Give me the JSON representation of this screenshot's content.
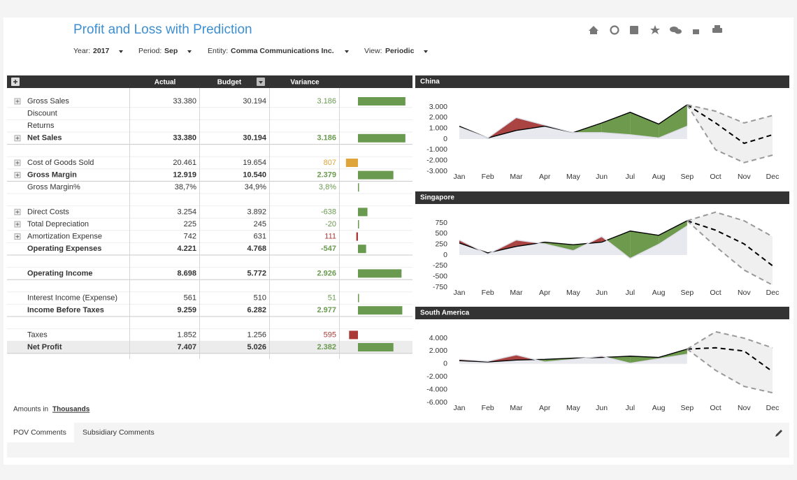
{
  "header": {
    "title": "Profit and Loss with Prediction"
  },
  "filters": [
    {
      "label": "Year:",
      "value": "2017"
    },
    {
      "label": "Period:",
      "value": "Sep"
    },
    {
      "label": "Entity:",
      "value": "Comma Communications Inc."
    },
    {
      "label": "View:",
      "value": "Periodic"
    }
  ],
  "table": {
    "columns": [
      "Actual",
      "Budget",
      "Variance"
    ],
    "bar_scale_per_unit": 0.0213,
    "rows": [
      {
        "label": "Gross Sales",
        "expand": true,
        "actual": "33.380",
        "budget": "30.194",
        "variance": 3186,
        "variance_label": "3.186",
        "color": "#6a9a4f"
      },
      {
        "label": "Discount"
      },
      {
        "label": "Returns"
      },
      {
        "label": "Net Sales",
        "expand": true,
        "bold": true,
        "actual": "33.380",
        "budget": "30.194",
        "variance": 3186,
        "variance_label": "3.186",
        "color": "#6a9a4f"
      },
      null,
      {
        "label": "Cost of Goods Sold",
        "expand": true,
        "inverse": true,
        "actual": "20.461",
        "budget": "19.654",
        "variance": 807,
        "variance_label": "807",
        "color": "#e0a53a"
      },
      {
        "label": "Gross Margin",
        "expand": true,
        "bold": true,
        "actual": "12.919",
        "budget": "10.540",
        "variance": 2379,
        "variance_label": "2.379",
        "color": "#6a9a4f"
      },
      {
        "label": "Gross Margin%",
        "actual": "38,7%",
        "budget": "34,9%",
        "variance": 3.8,
        "variance_label": "3,8%",
        "color": "#6a9a4f"
      },
      null,
      {
        "label": "Direct Costs",
        "expand": true,
        "inverse": true,
        "actual": "3.254",
        "budget": "3.892",
        "variance": -638,
        "variance_label": "-638",
        "color": "#6a9a4f"
      },
      {
        "label": "Total Depreciation",
        "expand": true,
        "inverse": true,
        "actual": "225",
        "budget": "245",
        "variance": -20,
        "variance_label": "-20",
        "color": "#6a9a4f"
      },
      {
        "label": "Amortization Expense",
        "expand": true,
        "inverse": true,
        "actual": "742",
        "budget": "631",
        "variance": 111,
        "variance_label": "111",
        "color": "#a93a36"
      },
      {
        "label": "Operating Expenses",
        "bold": true,
        "inverse": true,
        "actual": "4.221",
        "budget": "4.768",
        "variance": -547,
        "variance_label": "-547",
        "color": "#6a9a4f"
      },
      null,
      {
        "label": "Operating Income",
        "bold": true,
        "actual": "8.698",
        "budget": "5.772",
        "variance": 2926,
        "variance_label": "2.926",
        "color": "#6a9a4f"
      },
      null,
      {
        "label": "Interest Income (Expense)",
        "actual": "561",
        "budget": "510",
        "variance": 51,
        "variance_label": "51",
        "color": "#6a9a4f"
      },
      {
        "label": "Income Before Taxes",
        "bold": true,
        "actual": "9.259",
        "budget": "6.282",
        "variance": 2977,
        "variance_label": "2.977",
        "color": "#6a9a4f"
      },
      null,
      {
        "label": "Taxes",
        "inverse": true,
        "actual": "1.852",
        "budget": "1.256",
        "variance": 595,
        "variance_label": "595",
        "color": "#a93a36"
      },
      {
        "label": "Net Profit",
        "bold": true,
        "highlight": true,
        "actual": "7.407",
        "budget": "5.026",
        "variance": 2382,
        "variance_label": "2.382",
        "color": "#6a9a4f"
      }
    ]
  },
  "chart_data": [
    {
      "type": "line",
      "title": "China",
      "categories": [
        "Jan",
        "Feb",
        "Mar",
        "Apr",
        "May",
        "Jun",
        "Jul",
        "Aug",
        "Sep",
        "Oct",
        "Nov",
        "Dec"
      ],
      "ylim": [
        -3000,
        3000
      ],
      "yticks": [
        {
          "value": 3000,
          "label": "3.000"
        },
        {
          "value": 2000,
          "label": "2.000"
        },
        {
          "value": 1000,
          "label": "1.000"
        },
        0,
        {
          "value": -1000,
          "label": "-1.000"
        },
        {
          "value": -2000,
          "label": "-2.000"
        },
        {
          "value": -3000,
          "label": "-3.000"
        }
      ],
      "above_color": "#6e9a4e",
      "below_color": "#a94442",
      "series": [
        {
          "color": "#000000",
          "values": [
            1200,
            100,
            800,
            1200,
            600,
            1500,
            2500,
            1400,
            3200,
            null,
            null,
            null
          ]
        },
        {
          "color": "#dddde6",
          "values": [
            1100,
            100,
            2000,
            1300,
            600,
            600,
            400,
            100,
            1200,
            null,
            null,
            null
          ]
        },
        {
          "color": "#000000",
          "dashed": true,
          "values": [
            null,
            null,
            null,
            null,
            null,
            null,
            null,
            null,
            3200,
            1500,
            -400,
            400
          ]
        },
        {
          "color": "#999999",
          "dashed": true,
          "band": true,
          "values": [
            null,
            null,
            null,
            null,
            null,
            null,
            null,
            null,
            3200,
            2600,
            1500,
            2200
          ]
        },
        {
          "color": "#999999",
          "dashed": true,
          "band": true,
          "values": [
            null,
            null,
            null,
            null,
            null,
            null,
            null,
            null,
            3200,
            -1000,
            -2200,
            -1500
          ]
        }
      ]
    },
    {
      "type": "line",
      "title": "Singapore",
      "categories": [
        "Jan",
        "Feb",
        "Mar",
        "Apr",
        "May",
        "Jun",
        "Jul",
        "Aug",
        "Sep",
        "Oct",
        "Nov",
        "Dec"
      ],
      "ylim": [
        -750,
        750
      ],
      "yticks": [
        750,
        500,
        250,
        0,
        -250,
        -500,
        -750
      ],
      "above_color": "#6e9a4e",
      "below_color": "#a94442",
      "series": [
        {
          "color": "#000000",
          "values": [
            280,
            50,
            200,
            300,
            240,
            300,
            560,
            460,
            800,
            null,
            null,
            null
          ]
        },
        {
          "color": "#dddde6",
          "values": [
            350,
            20,
            350,
            260,
            100,
            430,
            -80,
            250,
            680,
            null,
            null,
            null
          ]
        },
        {
          "color": "#000000",
          "dashed": true,
          "values": [
            null,
            null,
            null,
            null,
            null,
            null,
            null,
            null,
            800,
            580,
            260,
            -250
          ]
        },
        {
          "color": "#999999",
          "dashed": true,
          "band": true,
          "values": [
            null,
            null,
            null,
            null,
            null,
            null,
            null,
            null,
            800,
            1000,
            800,
            430
          ]
        },
        {
          "color": "#999999",
          "dashed": true,
          "band": true,
          "values": [
            null,
            null,
            null,
            null,
            null,
            null,
            null,
            null,
            800,
            200,
            -350,
            -700
          ]
        }
      ]
    },
    {
      "type": "line",
      "title": "South America",
      "categories": [
        "Jan",
        "Feb",
        "Mar",
        "Apr",
        "May",
        "Jun",
        "Jul",
        "Aug",
        "Sep",
        "Oct",
        "Nov",
        "Dec"
      ],
      "ylim": [
        -6000,
        4000
      ],
      "yticks": [
        {
          "value": 4000,
          "label": "4.000"
        },
        {
          "value": 2000,
          "label": "2.000"
        },
        0,
        {
          "value": -2000,
          "label": "-2.000"
        },
        {
          "value": -4000,
          "label": "-4.000"
        },
        {
          "value": -6000,
          "label": "-6.000"
        }
      ],
      "above_color": "#6e9a4e",
      "below_color": "#a94442",
      "series": [
        {
          "color": "#000000",
          "values": [
            500,
            300,
            600,
            700,
            900,
            1000,
            1200,
            1000,
            2300,
            null,
            null,
            null
          ]
        },
        {
          "color": "#dddde6",
          "values": [
            700,
            400,
            1400,
            300,
            700,
            1200,
            100,
            800,
            1500,
            null,
            null,
            null
          ]
        },
        {
          "color": "#000000",
          "dashed": true,
          "values": [
            null,
            null,
            null,
            null,
            null,
            null,
            null,
            null,
            2300,
            2500,
            2000,
            -1200
          ]
        },
        {
          "color": "#999999",
          "dashed": true,
          "band": true,
          "values": [
            null,
            null,
            null,
            null,
            null,
            null,
            null,
            null,
            2300,
            5000,
            4000,
            2500
          ]
        },
        {
          "color": "#999999",
          "dashed": true,
          "band": true,
          "values": [
            null,
            null,
            null,
            null,
            null,
            null,
            null,
            null,
            2300,
            -1000,
            -3500,
            -4500
          ]
        }
      ]
    }
  ],
  "footer": {
    "amounts_prefix": "Amounts in",
    "amounts_unit": "Thousands",
    "tabs": [
      "POV Comments",
      "Subsidiary Comments"
    ]
  }
}
